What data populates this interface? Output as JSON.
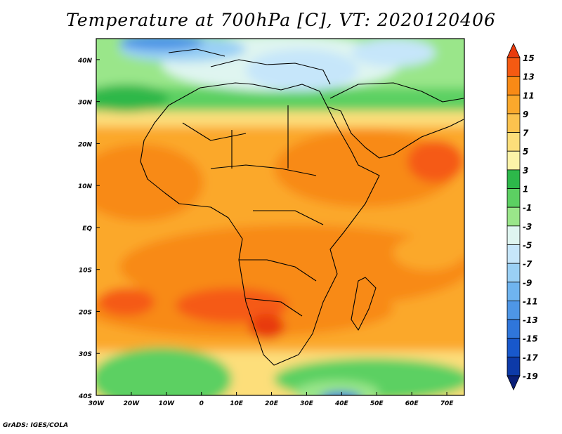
{
  "title": "Temperature at 700hPa [C], VT: 2020120406",
  "credit": "GrADS: IGES/COLA",
  "map": {
    "lon_range": [
      -30,
      75
    ],
    "lat_range": [
      -40,
      45
    ],
    "lat_labels": [
      "40N",
      "30N",
      "20N",
      "10N",
      "EQ",
      "10S",
      "20S",
      "30S",
      "40S"
    ],
    "lat_values": [
      40,
      30,
      20,
      10,
      0,
      -10,
      -20,
      -30,
      -40
    ],
    "lon_labels": [
      "30W",
      "20W",
      "10W",
      "0",
      "10E",
      "20E",
      "30E",
      "40E",
      "50E",
      "60E",
      "70E"
    ],
    "lon_values": [
      -30,
      -20,
      -10,
      0,
      10,
      20,
      30,
      40,
      50,
      60,
      70
    ]
  },
  "colorbar": {
    "labels": [
      "15",
      "13",
      "11",
      "9",
      "7",
      "5",
      "3",
      "1",
      "-1",
      "-3",
      "-5",
      "-7",
      "-9",
      "-11",
      "-13",
      "-15",
      "-17",
      "-19"
    ],
    "colors": [
      "#e83a0c",
      "#f55a12",
      "#f88a16",
      "#fba82c",
      "#fcc24e",
      "#fdde7a",
      "#fcf3a8",
      "#2db84a",
      "#5cd062",
      "#9ae68a",
      "#dff5f0",
      "#c6e6fa",
      "#9ad0f5",
      "#6fb4ef",
      "#4e96e6",
      "#2f76db",
      "#1858cc",
      "#0d3aa8",
      "#0a1f78"
    ]
  }
}
